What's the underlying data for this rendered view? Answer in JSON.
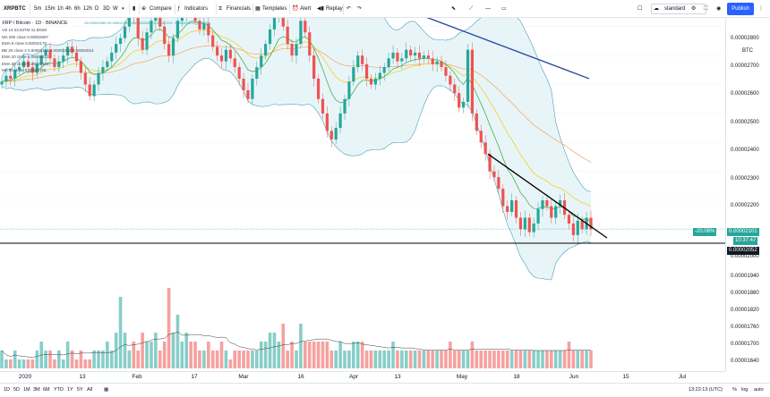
{
  "toolbar": {
    "symbol": "XRPBTC",
    "intervals": [
      "5m",
      "15m",
      "1h",
      "4h",
      "6h",
      "12h",
      "D",
      "3D",
      "W"
    ],
    "compare": "Compare",
    "indicators": "Indicators",
    "financials": "Financials",
    "templates": "Templates",
    "alert": "Alert",
    "replay": "Replay",
    "workspace": "standard",
    "publish": "Publish"
  },
  "legend": {
    "title": "XRP / Bitcoin · 1D · BINANCE",
    "ohlc": "O0.00002089 H0.00002109 L0.00002081 C0.00002101 +0.00000012 (+0.57%)",
    "lines": [
      "Vol 14  23.637M  41.591M",
      "MA 200 close  0.00002697",
      "EMA 9 close  0.00002170",
      "BB 20 close 2  0.00002114  0.00002214  0.00002014",
      "EMA 20 close  0.00002211",
      "EMA 50 close  0.00002303",
      "MA 50 close  0.00002326"
    ]
  },
  "price_axis": {
    "currency": "BTC",
    "labels": [
      "0.00002800",
      "0.00002700",
      "0.00002600",
      "0.00002500",
      "0.00002400",
      "0.00002300",
      "0.00002200",
      "0.00002100",
      "0.00002000",
      "0.00001940",
      "0.00001880",
      "0.00001820",
      "0.00001760",
      "0.00001700",
      "0.00001640"
    ],
    "pct_change": "-20.08%",
    "last_price": "0.00002101",
    "countdown": "10:37:47",
    "line_price": "0.00002052"
  },
  "time_axis": {
    "labels": [
      "2020",
      "13",
      "Feb",
      "17",
      "Mar",
      "16",
      "Apr",
      "13",
      "May",
      "18",
      "Jun",
      "15",
      "Jul"
    ]
  },
  "bottom_bar": {
    "ranges": [
      "1D",
      "5D",
      "1M",
      "3M",
      "6M",
      "YTD",
      "1Y",
      "5Y",
      "All"
    ],
    "time": "13:22:13 (UTC)",
    "percent": "%",
    "log": "log",
    "auto": "auto"
  },
  "colors": {
    "up": "#26a69a",
    "down": "#ef5350",
    "bb_fill": "#e5f4f7",
    "bb_band": "#4a9fb8",
    "ma200": "#2f4f9e",
    "ema9": "#4caf50",
    "ema20": "#f2d024",
    "ema50": "#f4a261",
    "accent": "#2962ff"
  },
  "chart_data": {
    "type": "candlestick",
    "price_range": [
      1.95e-05,
      2.83e-05
    ],
    "trendline": {
      "from": [
        2.36e-05,
        "May 10"
      ],
      "to": [
        2.07e-05,
        "Jun 10"
      ]
    },
    "horizontal_line": 2.052e-05,
    "closes": [
      2.61,
      2.63,
      2.62,
      2.65,
      2.66,
      2.68,
      2.66,
      2.64,
      2.67,
      2.7,
      2.72,
      2.69,
      2.66,
      2.68,
      2.7,
      2.73,
      2.71,
      2.68,
      2.64,
      2.6,
      2.56,
      2.6,
      2.64,
      2.66,
      2.68,
      2.71,
      2.74,
      2.76,
      2.8,
      2.86,
      2.83,
      2.76,
      2.72,
      2.78,
      2.82,
      2.86,
      2.8,
      2.74,
      2.7,
      2.76,
      2.82,
      2.84,
      2.88,
      2.86,
      2.82,
      2.79,
      2.81,
      2.77,
      2.73,
      2.7,
      2.68,
      2.72,
      2.69,
      2.66,
      2.62,
      2.58,
      2.55,
      2.62,
      2.66,
      2.7,
      2.74,
      2.79,
      2.84,
      2.88,
      2.8,
      2.74,
      2.7,
      2.74,
      2.82,
      2.78,
      2.7,
      2.62,
      2.55,
      2.5,
      2.44,
      2.41,
      2.45,
      2.5,
      2.55,
      2.61,
      2.66,
      2.7,
      2.67,
      2.62,
      2.6,
      2.62,
      2.64,
      2.66,
      2.69,
      2.71,
      2.68,
      2.69,
      2.72,
      2.7,
      2.71,
      2.69,
      2.7,
      2.69,
      2.67,
      2.68,
      2.66,
      2.63,
      2.6,
      2.57,
      2.52,
      2.54,
      2.72,
      2.5,
      2.44,
      2.4,
      2.36,
      2.3,
      2.28,
      2.24,
      2.18,
      2.16,
      2.2,
      2.14,
      2.1,
      2.14,
      2.09,
      2.12,
      2.17,
      2.2,
      2.18,
      2.14,
      2.18,
      2.2,
      2.15,
      2.12,
      2.08,
      2.13,
      2.1,
      2.14,
      2.1
    ],
    "volumes": [
      2,
      1,
      1,
      2,
      1,
      1,
      1,
      1,
      2,
      3,
      2,
      2,
      1,
      2,
      1,
      3,
      2,
      1,
      2,
      1,
      1,
      2,
      2,
      2,
      3,
      2,
      4,
      8,
      4,
      2,
      3,
      2,
      4,
      3,
      3,
      4,
      2,
      3,
      9,
      4,
      6,
      3,
      4,
      3,
      3,
      2,
      2,
      3,
      2,
      2,
      3,
      2,
      1,
      2,
      2,
      2,
      2,
      2,
      2,
      3,
      3,
      4,
      4,
      3,
      5,
      2,
      3,
      2,
      5,
      3,
      3,
      3,
      3,
      3,
      3,
      2,
      2,
      3,
      2,
      2,
      3,
      3,
      3,
      2,
      2,
      2,
      2,
      2,
      2,
      3,
      2,
      2,
      2,
      2,
      2,
      2,
      2,
      2,
      2,
      2,
      2,
      2,
      3,
      2,
      2,
      2,
      2,
      3,
      2,
      2,
      2,
      2,
      2,
      2,
      2,
      2,
      2,
      2,
      2,
      2,
      2,
      2,
      2,
      2,
      2,
      2,
      2,
      2,
      2,
      3,
      2,
      2,
      2,
      2,
      2
    ]
  }
}
